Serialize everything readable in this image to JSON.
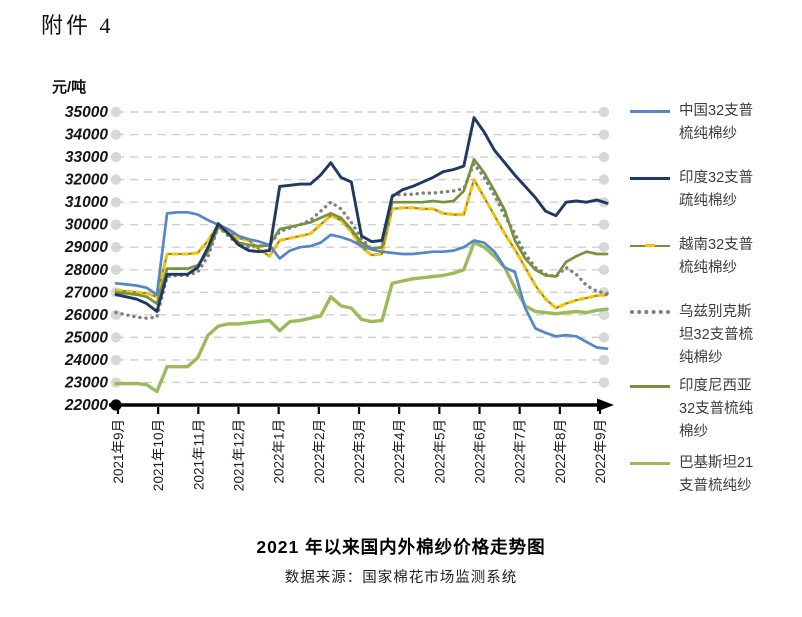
{
  "page": {
    "attachment_label": "附件 4",
    "chart_title": "2021 年以来国内外棉纱价格走势图",
    "source_note": "数据来源：国家棉花市场监测系统"
  },
  "chart_data": {
    "type": "line",
    "unit_label": "元/吨",
    "title": "2021 年以来国内外棉纱价格走势图",
    "ylim": [
      22000,
      35000
    ],
    "y_tick_step": 1000,
    "y_ticks": [
      22000,
      23000,
      24000,
      25000,
      26000,
      27000,
      28000,
      29000,
      30000,
      31000,
      32000,
      33000,
      34000,
      35000
    ],
    "x_tick_labels": [
      "2021年9月",
      "2021年10月",
      "2021年11月",
      "2021年12月",
      "2022年1月",
      "2022年2月",
      "2022年3月",
      "2022年4月",
      "2022年5月",
      "2022年6月",
      "2022年7月",
      "2022年8月",
      "2022年9月"
    ],
    "grid": "horizontal-dashed-with-end-dots",
    "grid_color": "#CFCFCF",
    "axis_color": "#000000",
    "legend_position": "right",
    "points_per_series": 49,
    "series": [
      {
        "id": "china",
        "label": "中国32支普梳纯棉纱",
        "label_lines": [
          "中国32支普",
          "梳纯棉纱"
        ],
        "color": "#5586C8",
        "line_style": "solid",
        "values": [
          27400,
          27350,
          27300,
          27200,
          26900,
          30500,
          30550,
          30550,
          30450,
          30200,
          30000,
          29800,
          29500,
          29350,
          29250,
          29100,
          28500,
          28850,
          29000,
          29050,
          29200,
          29550,
          29450,
          29300,
          29050,
          28900,
          28800,
          28750,
          28700,
          28700,
          28750,
          28800,
          28800,
          28850,
          29000,
          29300,
          29200,
          28800,
          28100,
          27900,
          26300,
          25400,
          25200,
          25050,
          25100,
          25050,
          24800,
          24550,
          24500
        ]
      },
      {
        "id": "india",
        "label": "印度32支普疏纯棉纱",
        "label_lines": [
          "印度32支普",
          "疏纯棉纱"
        ],
        "color": "#1F3864",
        "line_style": "solid",
        "values": [
          26900,
          26800,
          26700,
          26500,
          26150,
          27800,
          27800,
          27800,
          28100,
          29000,
          30050,
          29600,
          29100,
          28850,
          28800,
          28850,
          31700,
          31750,
          31800,
          31800,
          32200,
          32750,
          32100,
          31900,
          29500,
          29250,
          29300,
          31250,
          31550,
          31700,
          31900,
          32100,
          32350,
          32450,
          32600,
          34750,
          34100,
          33300,
          32750,
          32200,
          31700,
          31200,
          30600,
          30400,
          31000,
          31050,
          31000,
          31100,
          30950
        ]
      },
      {
        "id": "vietnam",
        "label": "越南32支普梳纯棉纱",
        "label_lines": [
          "越南32支普",
          "梳纯棉纱"
        ],
        "color": "#FFC000",
        "underlay_color": "#76923C",
        "line_style": "dashed",
        "values": [
          27100,
          27050,
          27000,
          26950,
          26800,
          28700,
          28700,
          28700,
          28750,
          29300,
          30000,
          29700,
          29400,
          29300,
          28900,
          28600,
          29300,
          29400,
          29500,
          29600,
          30000,
          30400,
          30200,
          29700,
          29000,
          28650,
          28700,
          30700,
          30750,
          30750,
          30700,
          30700,
          30500,
          30450,
          30450,
          32000,
          31200,
          30400,
          29600,
          28900,
          28100,
          27300,
          26700,
          26300,
          26500,
          26650,
          26750,
          26850,
          26900
        ]
      },
      {
        "id": "uzbekistan",
        "label": "乌兹别克斯坦32支普梳纯棉纱",
        "label_lines": [
          "乌兹别克斯",
          "坦32支普梳",
          "纯棉纱"
        ],
        "color": "#7F7F7F",
        "line_style": "dotted",
        "values": [
          26100,
          26000,
          25900,
          25850,
          25900,
          27700,
          27750,
          27750,
          27900,
          28600,
          29900,
          29500,
          29100,
          29000,
          29050,
          29100,
          29700,
          29850,
          30000,
          30200,
          30600,
          31000,
          30700,
          30100,
          29400,
          28900,
          29000,
          31300,
          31350,
          31350,
          31400,
          31400,
          31450,
          31500,
          31600,
          32700,
          32100,
          31300,
          30400,
          29600,
          28700,
          28100,
          27800,
          27700,
          28100,
          27800,
          27300,
          27050,
          26950
        ]
      },
      {
        "id": "indonesia",
        "label": "印度尼西亚32支普梳纯棉纱",
        "label_lines": [
          "印度尼西亚",
          "32支普梳纯",
          "棉纱"
        ],
        "color": "#76923C",
        "line_style": "solid",
        "values": [
          27000,
          26950,
          26900,
          26800,
          26500,
          28050,
          28050,
          28050,
          28200,
          28800,
          29900,
          29600,
          29200,
          29100,
          29050,
          29100,
          29800,
          29900,
          30000,
          30100,
          30300,
          30500,
          30300,
          29800,
          29200,
          28950,
          29000,
          31000,
          31000,
          31000,
          31000,
          31050,
          31000,
          31050,
          31500,
          32900,
          32300,
          31500,
          30650,
          29300,
          28500,
          28000,
          27750,
          27700,
          28350,
          28600,
          28800,
          28700,
          28700
        ]
      },
      {
        "id": "pakistan",
        "label": "巴基斯坦21支普梳纯纱",
        "label_lines": [
          "巴基斯坦21",
          "支普梳纯纱"
        ],
        "color": "#9BBB59",
        "line_style": "solid",
        "values": [
          22950,
          22950,
          22950,
          22900,
          22600,
          23700,
          23700,
          23700,
          24100,
          25100,
          25500,
          25600,
          25600,
          25650,
          25700,
          25750,
          25300,
          25700,
          25750,
          25850,
          25950,
          26800,
          26400,
          26300,
          25800,
          25700,
          25750,
          27400,
          27500,
          27600,
          27650,
          27700,
          27750,
          27850,
          28000,
          29200,
          29000,
          28600,
          28100,
          27200,
          26400,
          26150,
          26100,
          26050,
          26100,
          26150,
          26100,
          26200,
          26250
        ]
      }
    ]
  }
}
